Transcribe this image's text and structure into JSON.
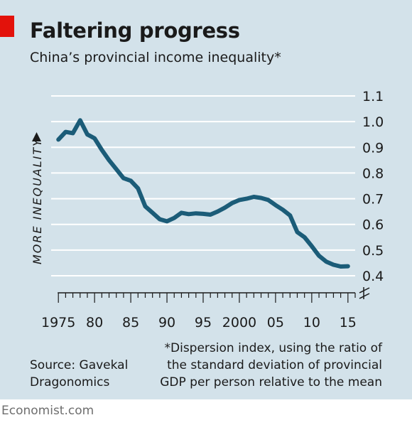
{
  "header": {
    "title": "Faltering progress",
    "subtitle": "China’s provincial income inequality*"
  },
  "footer": {
    "source": "Source: Gavekal Dragonomics",
    "note": "*Dispersion index, using the ratio of the standard deviation of provincial GDP per person relative to the mean",
    "brand": "Economist.com"
  },
  "colors": {
    "background": "#d3e2ea",
    "line": "#1b5c78",
    "accent": "#e3120b",
    "grid": "#ffffff"
  },
  "chart_data": {
    "type": "line",
    "ylabel": "MORE INEQUALITY",
    "ylim": [
      0.4,
      1.1
    ],
    "yticks": [
      "0.4",
      "0.5",
      "0.6",
      "0.7",
      "0.8",
      "0.9",
      "1.0",
      "1.1"
    ],
    "xlim": [
      1974,
      2016
    ],
    "xticks": [
      "1975",
      "80",
      "85",
      "90",
      "95",
      "2000",
      "05",
      "10",
      "15"
    ],
    "axis_break": true,
    "series": [
      {
        "x": [
          1975,
          1976,
          1977,
          1978,
          1979,
          1980,
          1981,
          1982,
          1983,
          1984,
          1985,
          1986,
          1987,
          1988,
          1989,
          1990,
          1991,
          1992,
          1993,
          1994,
          1995,
          1996,
          1997,
          1998,
          1999,
          2000,
          2001,
          2002,
          2003,
          2004,
          2005,
          2006,
          2007,
          2008,
          2009,
          2010,
          2011,
          2012,
          2013,
          2014,
          2015
        ],
        "y": [
          0.93,
          0.96,
          0.955,
          1.005,
          0.95,
          0.935,
          0.89,
          0.85,
          0.815,
          0.78,
          0.77,
          0.74,
          0.67,
          0.645,
          0.62,
          0.612,
          0.625,
          0.645,
          0.64,
          0.643,
          0.641,
          0.638,
          0.65,
          0.665,
          0.683,
          0.695,
          0.7,
          0.707,
          0.703,
          0.695,
          0.675,
          0.657,
          0.635,
          0.57,
          0.55,
          0.515,
          0.478,
          0.455,
          0.443,
          0.436,
          0.437
        ]
      }
    ]
  }
}
